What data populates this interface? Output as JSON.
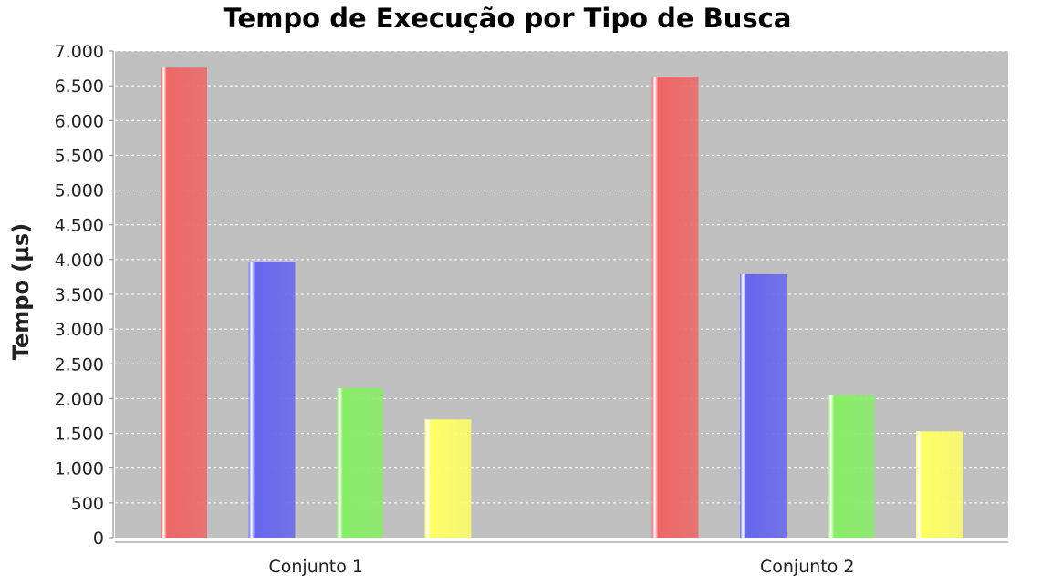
{
  "colors": {
    "background": "#ffffff",
    "plot_background": "#c0c0c0",
    "gridline": "#ffffff",
    "axis": "#808080",
    "series": [
      "#ee6666",
      "#6666ee",
      "#88ee66",
      "#ffff66"
    ]
  },
  "chart_data": {
    "type": "bar",
    "title": "Tempo de Execução por Tipo de Busca",
    "xlabel": "",
    "ylabel": "Tempo (µs)",
    "ylim": [
      0,
      7000
    ],
    "ytick_values": [
      0,
      500,
      1000,
      1500,
      2000,
      2500,
      3000,
      3500,
      4000,
      4500,
      5000,
      5500,
      6000,
      6500,
      7000
    ],
    "ytick_labels": [
      "0",
      "500",
      "1.000",
      "1.500",
      "2.000",
      "2.500",
      "3.000",
      "3.500",
      "4.000",
      "4.500",
      "5.000",
      "5.500",
      "6.000",
      "6.500",
      "7.000"
    ],
    "categories": [
      "Conjunto 1",
      "Conjunto 2"
    ],
    "series": [
      {
        "color": "#ee6666",
        "values": [
          6760,
          6630
        ]
      },
      {
        "color": "#6666ee",
        "values": [
          3970,
          3790
        ]
      },
      {
        "color": "#88ee66",
        "values": [
          2150,
          2050
        ]
      },
      {
        "color": "#ffff66",
        "values": [
          1700,
          1530
        ]
      }
    ],
    "grid": true,
    "legend": "none"
  }
}
